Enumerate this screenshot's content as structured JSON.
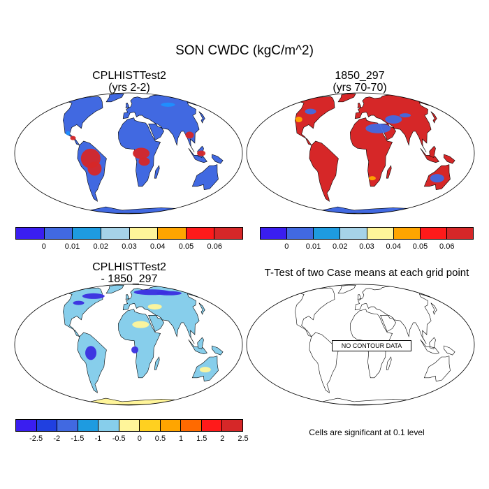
{
  "title": "SON CWDC (kgC/m^2)",
  "panels": {
    "top_left": {
      "title_line1": "CPLHISTTest2",
      "title_line2": "(yrs 2-2)",
      "ocean_color": "#ffffff",
      "land_base": "#4169e1",
      "land_hot": "#d62728",
      "land_mid": "#1e90ff"
    },
    "top_right": {
      "title_line1": "1850_297",
      "title_line2": "(yrs 70-70)",
      "ocean_color": "#ffffff",
      "land_base": "#d62728",
      "land_hot": "#4169e1",
      "land_mid": "#ffa500"
    },
    "bottom_left": {
      "title_line1": "CPLHISTTest2",
      "title_line2": "- 1850_297",
      "ocean_color": "#ffffff",
      "land_base": "#87ceeb",
      "land_hot": "#3a2ee0",
      "land_mid": "#fff59a"
    },
    "bottom_right": {
      "title": "T-Test of two Case means at each grid point",
      "no_data_label": "NO CONTOUR DATA",
      "note": "Cells are significant at 0.1 level"
    }
  },
  "colorbars": {
    "absolute": {
      "colors": [
        "#3a1ef0",
        "#4169e1",
        "#1e9be0",
        "#a6d3e8",
        "#fff59a",
        "#ffa500",
        "#ff1a1a",
        "#d62728"
      ],
      "labels": [
        "0",
        "0.01",
        "0.02",
        "0.03",
        "0.04",
        "0.05",
        "0.06"
      ]
    },
    "difference": {
      "colors": [
        "#3a1ef0",
        "#2040e0",
        "#4169e1",
        "#1e9be0",
        "#87ceeb",
        "#fff59a",
        "#ffd020",
        "#ffa500",
        "#ff6a00",
        "#ff1a1a",
        "#d62728"
      ],
      "labels": [
        "-2.5",
        "-2",
        "-1.5",
        "-1",
        "-0.5",
        "0",
        "0.5",
        "1",
        "1.5",
        "2",
        "2.5"
      ]
    }
  }
}
